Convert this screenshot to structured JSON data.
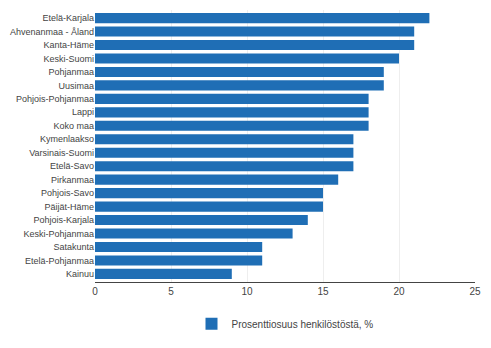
{
  "chart_data": {
    "type": "bar",
    "orientation": "horizontal",
    "categories": [
      "Kainuu",
      "Etelä-Pohjanmaa",
      "Satakunta",
      "Keski-Pohjanmaa",
      "Pohjois-Karjala",
      "Päijät-Häme",
      "Pohjois-Savo",
      "Pirkanmaa",
      "Etelä-Savo",
      "Varsinais-Suomi",
      "Kymenlaakso",
      "Koko maa",
      "Lappi",
      "Pohjois-Pohjanmaa",
      "Uusimaa",
      "Pohjanmaa",
      "Keski-Suomi",
      "Kanta-Häme",
      "Ahvenanmaa - Åland",
      "Etelä-Karjala"
    ],
    "series": [
      {
        "name": "Prosenttiosuus henkilöstöstä, %",
        "color": "#1f6eb5",
        "values": [
          9,
          11,
          11,
          13,
          14,
          15,
          15,
          16,
          17,
          17,
          17,
          18,
          18,
          18,
          19,
          19,
          20,
          21,
          21,
          22
        ]
      }
    ],
    "xlim": [
      0,
      25
    ],
    "xticks": [
      0,
      5,
      10,
      15,
      20,
      25
    ],
    "grid": true,
    "legend": "bottom"
  }
}
